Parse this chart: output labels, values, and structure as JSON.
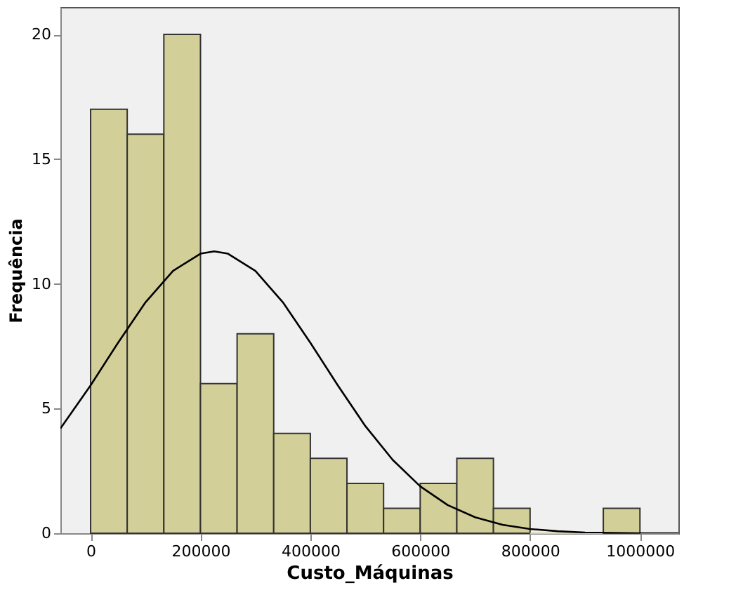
{
  "chart_data": {
    "type": "histogram",
    "xlabel": "Custo_Máquinas",
    "ylabel": "Frequência",
    "bins": [
      0,
      66666.67,
      133333.33,
      200000,
      266666.67,
      333333.33,
      400000,
      466666.67,
      533333.33,
      600000,
      666666.67,
      733333.33,
      800000,
      866666.67,
      933333.33,
      1000000
    ],
    "values": [
      17,
      16,
      20,
      6,
      8,
      4,
      3,
      2,
      1,
      2,
      3,
      1,
      0,
      0,
      1
    ],
    "color": "#d3cf98",
    "series": [
      {
        "type": "line",
        "color": "#000000",
        "x": [
          -55000,
          0,
          50000,
          100000,
          150000,
          200000,
          225000,
          250000,
          300000,
          350000,
          400000,
          450000,
          500000,
          550000,
          600000,
          650000,
          700000,
          750000,
          800000,
          850000,
          900000,
          950000,
          1000000,
          1070000
        ],
        "values": [
          4.2,
          5.93,
          7.64,
          9.26,
          10.52,
          11.21,
          11.3,
          11.21,
          10.52,
          9.26,
          7.64,
          5.93,
          4.3,
          2.94,
          1.88,
          1.13,
          0.64,
          0.34,
          0.17,
          0.08,
          0.03,
          0.01,
          0,
          0
        ]
      }
    ],
    "xlim": [
      -55000,
      1070000
    ],
    "xticks": [
      0,
      200000,
      400000,
      600000,
      800000,
      1000000
    ],
    "ylim": [
      0,
      21.1
    ],
    "yticks": [
      0,
      5,
      10,
      15,
      20
    ],
    "grid": false
  }
}
